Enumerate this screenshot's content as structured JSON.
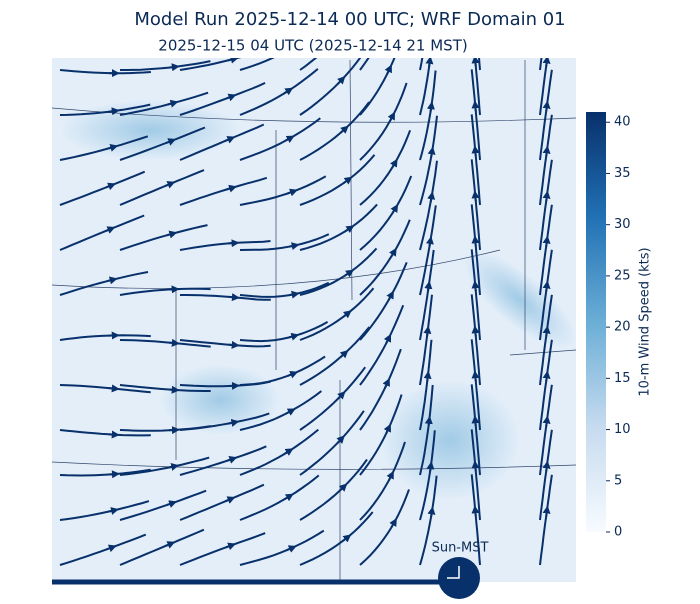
{
  "title": "Model Run 2025-12-14 00 UTC; WRF Domain 01",
  "subtitle": "2025-12-15 04 UTC  (2025-12-14 21 MST)",
  "colorbar": {
    "label": "10-m Wind Speed (kts)",
    "lim": [
      0,
      41
    ],
    "ticks": [
      0,
      5,
      10,
      15,
      20,
      25,
      30,
      35,
      40
    ]
  },
  "clock_label": "Sun-MST"
}
